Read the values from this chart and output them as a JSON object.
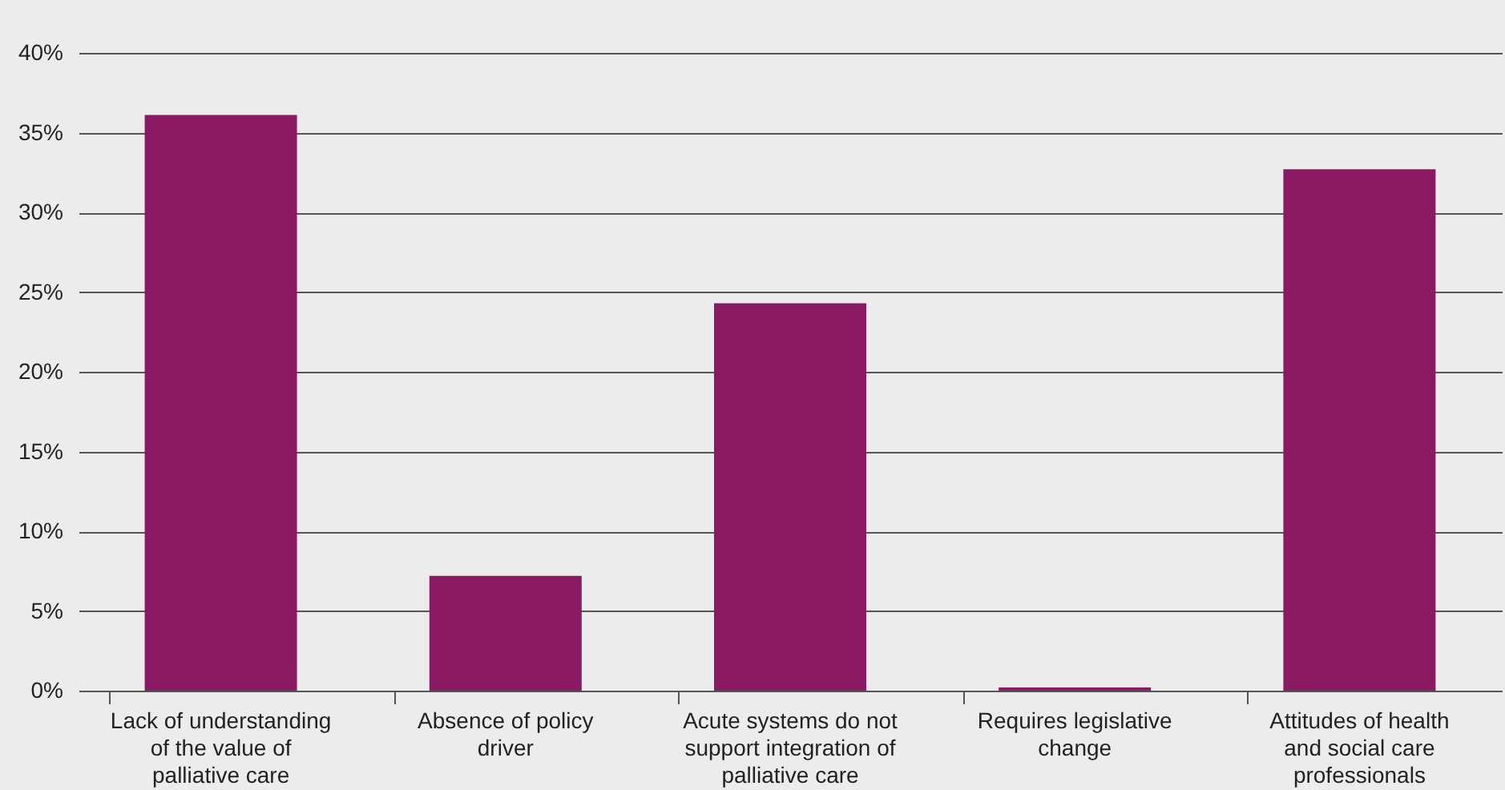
{
  "chart_data": {
    "type": "bar",
    "categories": [
      "Lack of understanding of the value of palliative care",
      "Absence of policy driver",
      "Acute systems do not support integration of palliative care",
      "Requires legislative change",
      "Attitudes of health and social care professionals"
    ],
    "values": [
      36.1,
      7.2,
      24.3,
      0.2,
      32.7
    ],
    "color": "#8b1a64",
    "ylim": [
      0,
      40
    ],
    "yticks": [
      {
        "value": 0,
        "label": "0%"
      },
      {
        "value": 5,
        "label": "5%"
      },
      {
        "value": 10,
        "label": "10%"
      },
      {
        "value": 15,
        "label": "15%"
      },
      {
        "value": 20,
        "label": "20%"
      },
      {
        "value": 25,
        "label": "25%"
      },
      {
        "value": 30,
        "label": "30%"
      },
      {
        "value": 35,
        "label": "35%"
      },
      {
        "value": 40,
        "label": "40%"
      }
    ],
    "grid": "y"
  }
}
